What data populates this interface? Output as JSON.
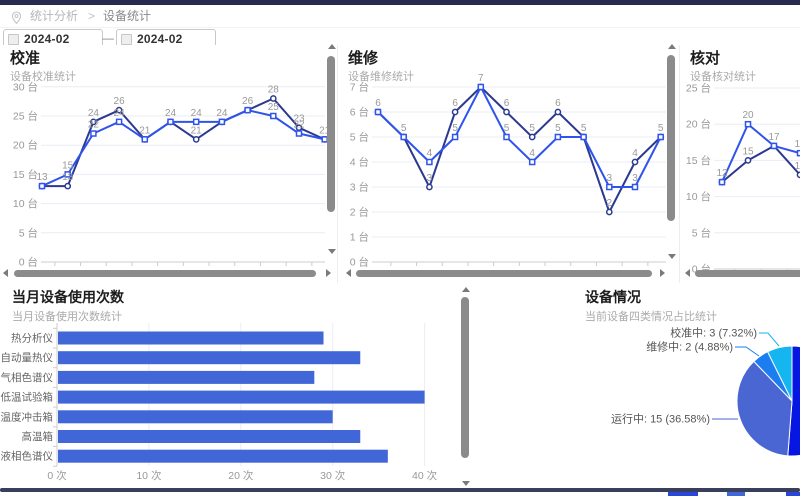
{
  "topbar": {
    "color": "#262b4f"
  },
  "breadcrumb": {
    "section": "统计分析",
    "separator": ">",
    "page": "设备统计"
  },
  "filters": {
    "start_date": "2024-02",
    "end_date": "2024-02",
    "dash": "—"
  },
  "colors": {
    "series_dark": "#2b3990",
    "series_blue": "#2f54eb",
    "bar": "#4166d8",
    "grid": "#e9edf6",
    "axis": "#cccccc",
    "tick_text": "#999999",
    "data_label": "#999999"
  },
  "chart_data": [
    {
      "id": "calibration",
      "type": "line",
      "title": "校准",
      "subtitle": "设备校准统计",
      "unit": "台",
      "ylim": [
        0,
        30
      ],
      "ytick_values": [
        0,
        5,
        10,
        15,
        20,
        25,
        30
      ],
      "ytick_labels": [
        "0 台",
        "5 台",
        "10 台",
        "15 台",
        "20 台",
        "25 台",
        "30 台"
      ],
      "series": [
        {
          "name": "series-dark",
          "color": "#2b3990",
          "symbol": "circle",
          "values": [
            13,
            13,
            24,
            26,
            21,
            24,
            21,
            24,
            26,
            28,
            23,
            21
          ]
        },
        {
          "name": "series-blue",
          "color": "#2f54eb",
          "symbol": "rect",
          "values": [
            13,
            15,
            22,
            24,
            21,
            24,
            24,
            24,
            26,
            25,
            22,
            21
          ]
        }
      ]
    },
    {
      "id": "repair",
      "type": "line",
      "title": "维修",
      "subtitle": "设备维修统计",
      "unit": "台",
      "ylim": [
        0,
        7
      ],
      "ytick_values": [
        0,
        1,
        2,
        3,
        4,
        5,
        6,
        7
      ],
      "ytick_labels": [
        "0 台",
        "1 台",
        "2 台",
        "3 台",
        "4 台",
        "5 台",
        "6 台",
        "7 台"
      ],
      "series": [
        {
          "name": "series-dark",
          "color": "#2b3990",
          "symbol": "circle",
          "values": [
            6,
            5,
            3,
            6,
            7,
            6,
            5,
            6,
            5,
            2,
            4,
            5
          ]
        },
        {
          "name": "series-blue",
          "color": "#2f54eb",
          "symbol": "rect",
          "values": [
            6,
            5,
            4,
            5,
            7,
            5,
            4,
            5,
            5,
            3,
            3,
            5
          ]
        }
      ]
    },
    {
      "id": "check",
      "type": "line",
      "title": "核对",
      "subtitle": "设备核对统计",
      "unit": "台",
      "ylim": [
        0,
        25
      ],
      "ytick_values": [
        0,
        5,
        10,
        15,
        20,
        25
      ],
      "ytick_labels": [
        "0 台",
        "5 台",
        "10 台",
        "15 台",
        "20 台",
        "25 台"
      ],
      "series": [
        {
          "name": "series-dark",
          "color": "#2b3990",
          "symbol": "circle",
          "values": [
            12,
            15,
            17,
            13
          ]
        },
        {
          "name": "series-blue",
          "color": "#2f54eb",
          "symbol": "rect",
          "values": [
            12,
            20,
            17,
            16
          ]
        }
      ]
    },
    {
      "id": "usage",
      "type": "bar",
      "title": "当月设备使用次数",
      "subtitle": "当月设备使用次数统计",
      "categories": [
        "热分析仪",
        "自动量热仪",
        "气相色谱仪",
        "低温试验箱",
        "温度冲击箱",
        "高温箱",
        "液相色谱仪"
      ],
      "values": [
        29,
        33,
        28,
        40,
        30,
        33,
        36
      ],
      "xtick_values": [
        0,
        10,
        20,
        30,
        40
      ],
      "xtick_labels": [
        "0 次",
        "10 次",
        "20 次",
        "30 次",
        "40 次"
      ],
      "xlim": [
        0,
        45
      ],
      "bar_color": "#4166d8"
    },
    {
      "id": "status",
      "type": "pie",
      "title": "设备情况",
      "subtitle": "当前设备四类情况占比统计",
      "slices": [
        {
          "name": "校准中",
          "value": 3,
          "pct": "7.32%",
          "label": "校准中: 3 (7.32%)",
          "color": "#15b5ef",
          "label_visible": true
        },
        {
          "name": "维修中",
          "value": 2,
          "pct": "4.88%",
          "label": "维修中: 2 (4.88%)",
          "color": "#1b7df0",
          "label_visible": true
        },
        {
          "name": "运行中",
          "value": 15,
          "pct": "36.58%",
          "label": "运行中: 15 (36.58%)",
          "color": "#4a66d2",
          "label_visible": true
        },
        {
          "name": "",
          "value": 21,
          "pct": "51.22%",
          "label": "",
          "color": "#0617e3",
          "label_visible": false
        }
      ]
    }
  ]
}
